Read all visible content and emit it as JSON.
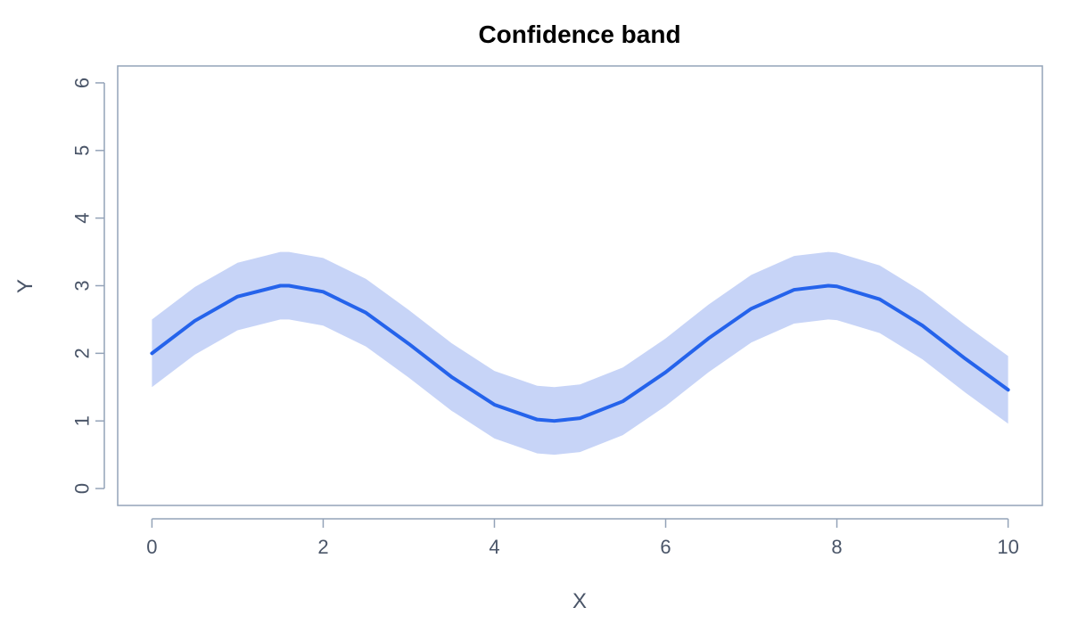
{
  "chart_data": {
    "type": "line",
    "title": "Confidence band",
    "xlabel": "X",
    "ylabel": "Y",
    "xlim": [
      -0.4,
      10.4
    ],
    "ylim": [
      -0.25,
      6.25
    ],
    "x_ticks": [
      0,
      2,
      4,
      6,
      8,
      10
    ],
    "y_ticks": [
      0,
      1,
      2,
      3,
      4,
      5,
      6
    ],
    "x_tick_labels": [
      "0",
      "2",
      "4",
      "6",
      "8",
      "10"
    ],
    "y_tick_labels": [
      "0",
      "1",
      "2",
      "3",
      "4",
      "5",
      "6"
    ],
    "grid": false,
    "legend": "none",
    "colors": {
      "line": "#2563eb",
      "band": "#c7d4f7",
      "axis": "#94a3b8",
      "tick_text": "#4a5568"
    },
    "series": [
      {
        "x": [
          0,
          0.5,
          1.0,
          1.5,
          1.6,
          2.0,
          2.5,
          3.0,
          3.5,
          4.0,
          4.5,
          4.7,
          5.0,
          5.5,
          6.0,
          6.5,
          7.0,
          7.5,
          7.9,
          8.0,
          8.5,
          9.0,
          9.5,
          10.0
        ],
        "y": [
          2.0,
          2.48,
          2.84,
          3.0,
          3.0,
          2.91,
          2.6,
          2.14,
          1.65,
          1.24,
          1.02,
          1.0,
          1.04,
          1.29,
          1.72,
          2.22,
          2.66,
          2.94,
          3.0,
          2.99,
          2.8,
          2.41,
          1.92,
          1.46
        ],
        "lower": [
          1.5,
          1.98,
          2.34,
          2.5,
          2.5,
          2.41,
          2.1,
          1.64,
          1.15,
          0.74,
          0.52,
          0.5,
          0.54,
          0.79,
          1.22,
          1.72,
          2.16,
          2.44,
          2.5,
          2.49,
          2.3,
          1.91,
          1.42,
          0.96
        ],
        "upper": [
          2.5,
          2.98,
          3.34,
          3.5,
          3.5,
          3.41,
          3.1,
          2.64,
          2.15,
          1.74,
          1.52,
          1.5,
          1.54,
          1.79,
          2.22,
          2.72,
          3.16,
          3.44,
          3.5,
          3.49,
          3.3,
          2.91,
          2.42,
          1.96
        ]
      }
    ]
  }
}
